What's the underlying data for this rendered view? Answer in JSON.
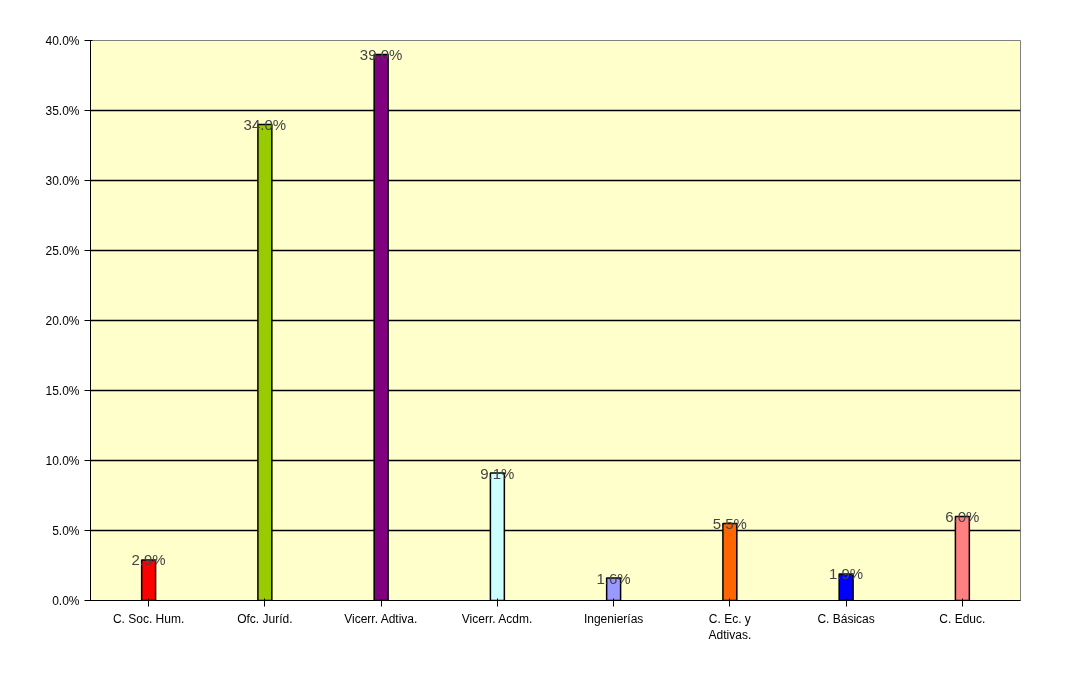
{
  "chart_data": {
    "type": "bar",
    "categories": [
      "C. Soc. Hum.",
      "Ofc. Juríd.",
      "Vicerr. Adtiva.",
      "Vicerr. Acdm.",
      "Ingenierías",
      "C. Ec. y\nAdtivas.",
      "C. Básicas",
      "C. Educ."
    ],
    "values": [
      2.9,
      34.0,
      39.0,
      9.1,
      1.6,
      5.5,
      1.9,
      6.0
    ],
    "colors": [
      "#ff0000",
      "#99cc00",
      "#800080",
      "#ccffff",
      "#9999ff",
      "#ff6600",
      "#0000ff",
      "#ff8080"
    ],
    "value_labels": [
      "2.9%",
      "34.0%",
      "39.0%",
      "9.1%",
      "1.6%",
      "5.5%",
      "1.9%",
      "6.0%"
    ],
    "ylim": [
      0,
      40
    ],
    "yticks": [
      {
        "value": 0,
        "label": "0.0%"
      },
      {
        "value": 5,
        "label": "5.0%"
      },
      {
        "value": 10,
        "label": "10.0%"
      },
      {
        "value": 15,
        "label": "15.0%"
      },
      {
        "value": 20,
        "label": "20.0%"
      },
      {
        "value": 25,
        "label": "25.0%"
      },
      {
        "value": 30,
        "label": "30.0%"
      },
      {
        "value": 35,
        "label": "35.0%"
      },
      {
        "value": 40,
        "label": "40.0%"
      }
    ],
    "grid": "y"
  }
}
